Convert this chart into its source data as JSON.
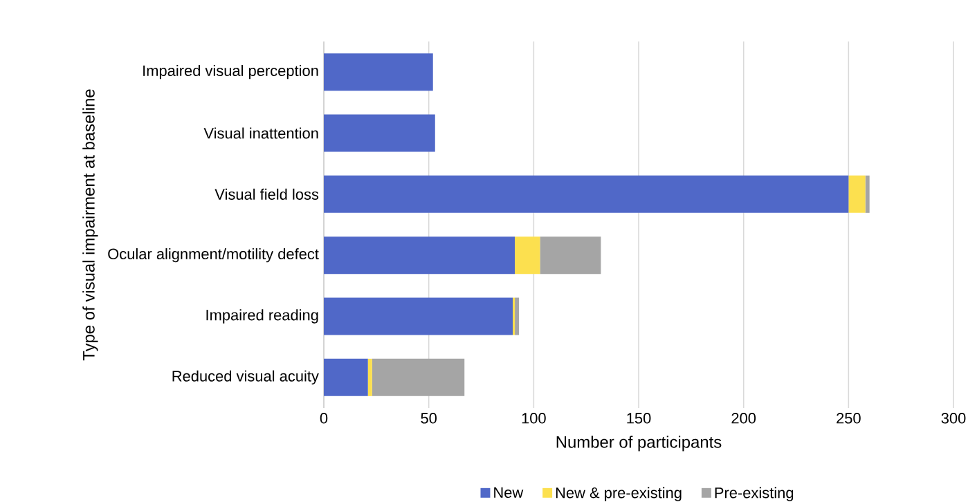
{
  "chart_data": {
    "type": "bar",
    "orientation": "horizontal",
    "stacked": true,
    "xlabel": "Number of participants",
    "ylabel": "Type of visual impairment at baseline",
    "categories": [
      "Impaired visual perception",
      "Visual inattention",
      "Visual field loss",
      "Ocular alignment/motility defect",
      "Impaired reading",
      "Reduced visual acuity"
    ],
    "series": [
      {
        "name": "New",
        "color": "#5068c8",
        "values": [
          52,
          53,
          250,
          91,
          90,
          21
        ]
      },
      {
        "name": "New & pre-existing",
        "color": "#fce04f",
        "values": [
          0,
          0,
          8,
          12,
          1,
          2
        ]
      },
      {
        "name": "Pre-existing",
        "color": "#a5a5a5",
        "values": [
          0,
          0,
          2,
          29,
          2,
          44
        ]
      }
    ],
    "xlim": [
      0,
      300
    ],
    "xticks": [
      0,
      50,
      100,
      150,
      200,
      250,
      300
    ],
    "grid": "x",
    "legend": "bottom"
  }
}
